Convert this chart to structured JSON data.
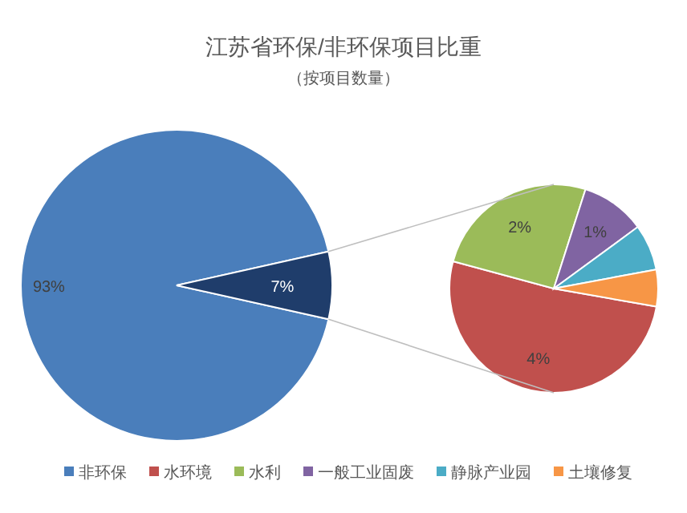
{
  "chart_data": [
    {
      "type": "pie",
      "title": "江苏省环保/非环保项目比重",
      "subtitle": "（按项目数量）",
      "categories": [
        "非环保",
        null
      ],
      "values": [
        93,
        7
      ],
      "colors": [
        "#4a7ebb",
        "#1f3d6b"
      ],
      "value_labels": [
        "93%",
        "7%"
      ],
      "legend": "bottom"
    },
    {
      "type": "pie",
      "categories": [
        "水环境",
        "水利",
        "一般工业固废",
        "静脉产业园",
        "土壤修复"
      ],
      "values": [
        3.6,
        1.8,
        0.7,
        0.5,
        0.4
      ],
      "colors": [
        "#c0504d",
        "#9bbb59",
        "#8064a2",
        "#4bacc6",
        "#f79646"
      ],
      "value_labels": [
        "4%",
        "2%",
        "1%",
        null,
        null
      ],
      "legend": "bottom"
    }
  ]
}
